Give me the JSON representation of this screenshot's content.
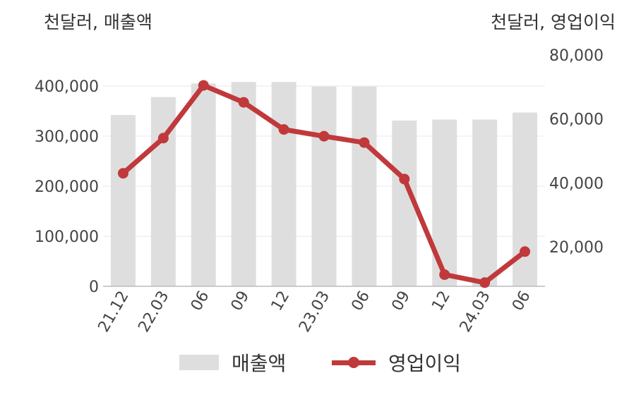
{
  "chart_data": {
    "type": "bar+line",
    "categories": [
      "21.12",
      "22.03",
      "06",
      "09",
      "12",
      "23.03",
      "06",
      "09",
      "12",
      "24.03",
      "06"
    ],
    "series": [
      {
        "name": "매출액",
        "type": "bar",
        "axis": "left",
        "values": [
          342000,
          378000,
          405000,
          408000,
          408000,
          399000,
          399000,
          331000,
          333000,
          333000,
          347000
        ]
      },
      {
        "name": "영업이익",
        "type": "line",
        "axis": "right",
        "values": [
          43000,
          54000,
          70500,
          65200,
          56700,
          54600,
          52600,
          41200,
          11300,
          8800,
          18500
        ]
      }
    ],
    "y_left": {
      "unit": "천달러, 매출액",
      "range": [
        0,
        400000
      ],
      "ticks": [
        "0",
        "100,000",
        "200,000",
        "300,000",
        "400,000"
      ]
    },
    "y_right": {
      "unit": "천달러, 영업이익",
      "range": [
        20000,
        80000
      ],
      "ticks": [
        "20,000",
        "40,000",
        "60,000",
        "80,000"
      ]
    },
    "colors": {
      "bar": "#dedede",
      "line": "#c0393b",
      "grid": "#e8e8e8",
      "axis": "#bbbbbb"
    },
    "grid": true,
    "legend_position": "bottom"
  },
  "legend": {
    "bar_label": "매출액",
    "line_label": "영업이익"
  }
}
